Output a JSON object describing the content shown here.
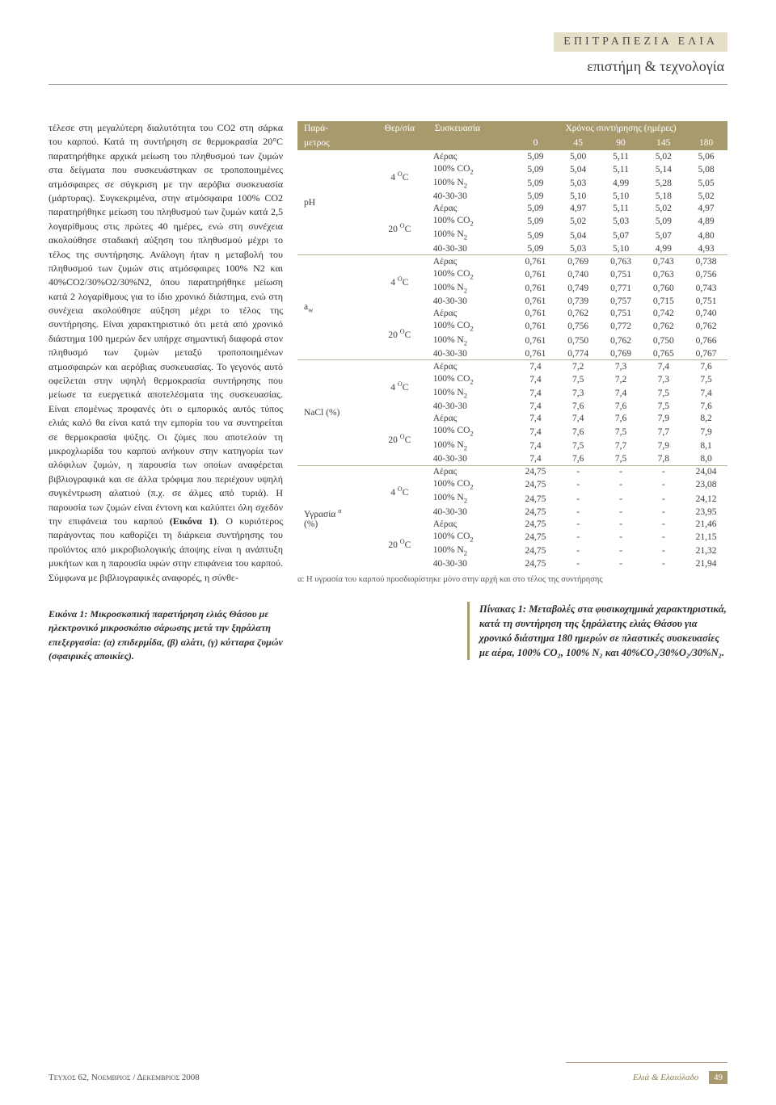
{
  "header": {
    "kicker": "ΕΠΙΤΡΑΠΕΖΙΑ ΕΛΙΑ",
    "subhead": "επιστήμη & τεχνολογία"
  },
  "body_text": "τέλεσε στη μεγαλύτερη διαλυτότητα του CO2 στη σάρκα του καρπού. Κατά τη συντήρηση σε θερμοκρασία 20°C παρατηρήθηκε αρχικά μείωση του πληθυσμού των ζυμών στα δείγματα που συσκευάστηκαν σε τροποποιημένες ατμόσφαιρες σε σύγκριση με την αερόβια συσκευασία (μάρτυρας). Συγκεκριμένα, στην ατμόσφαιρα 100% CO2 παρατηρήθηκε μείωση του πληθυσμού των ζυμών κατά 2,5 λογαρίθμους στις πρώτες 40 ημέρες, ενώ στη συνέχεια ακολούθησε σταδιακή αύξηση του πληθυσμού μέχρι το τέλος της συντήρησης. Ανάλογη ήταν η μεταβολή του πληθυσμού των ζυμών στις ατμόσφαιρες 100% N2 και 40%CO2/30%O2/30%N2, όπου παρατηρήθηκε μείωση κατά 2 λογαρίθμους για το ίδιο χρονικό διάστημα, ενώ στη συνέχεια ακολούθησε αύξηση μέχρι το τέλος της συντήρησης. Είναι χαρακτηριστικό ότι μετά από χρονικό διάστημα 100 ημερών δεν υπήρχε σημαντική διαφορά στον πληθυσμό των ζυμών μεταξύ τροποποιημένων ατμοσφαιρών και αερόβιας συσκευασίας. Το γεγονός αυτό οφείλεται στην υψηλή θερμοκρασία συντήρησης που μείωσε τα ευεργετικά αποτελέσματα της συσκευασίας. Είναι επομένως προφανές ότι ο εμπορικός αυτός τύπος ελιάς καλό θα είναι κατά την εμπορία του να συντηρείται σε θερμοκρασία ψύξης. Οι ζύμες που αποτελούν τη μικροχλωρίδα του καρπού ανήκουν στην κατηγορία των αλόφιλων ζυμών, η παρουσία των οποίων αναφέρεται βιβλιογραφικά και σε άλλα τρόφιμα που περιέχουν υψηλή συγκέντρωση αλατιού (π.χ. σε άλμες από τυριά). Η παρουσία των ζυμών είναι έντονη και καλύπτει όλη σχεδόν την επιφάνεια του καρπού ",
  "body_bold1": "(Εικόνα 1)",
  "body_text2": ". Ο κυριότερος παράγοντας που καθορίζει τη διάρκεια συντήρησης του προϊόντος από μικροβιολογικής άποψης είναι η ανάπτυξη μυκήτων και η παρουσία υφών στην επιφάνεια του καρπού. Σύμφωνα με βιβλιογραφικές αναφορές, η σύνθε-",
  "fig_caption": "Εικόνα 1: Μικροσκοπική παρατήρηση ελιάς Θάσου με ηλεκτρονικό μικροσκόπιο σάρωσης μετά την ξηράλατη επεξεργασία: (α) επιδερμίδα, (β) αλάτι, (γ) κύτταρα ζυμών (σφαιρικές αποικίες).",
  "table": {
    "header1": {
      "param": "Παρά-",
      "temp": "Θερ/σία",
      "pack": "Συσκευασία",
      "days_span": "Χρόνος συντήρησης (ημέρες)"
    },
    "header2": {
      "param": "μετρος",
      "d0": "0",
      "d45": "45",
      "d90": "90",
      "d145": "145",
      "d180": "180"
    },
    "packaging": [
      "Αέρας",
      "100% CO₂",
      "100% N₂",
      "40-30-30"
    ],
    "temps": [
      "4 °C",
      "20 °C"
    ],
    "groups": [
      {
        "param": "pH",
        "blocks": [
          {
            "temp_idx": 0,
            "rows": [
              [
                "5,09",
                "5,00",
                "5,11",
                "5,02",
                "5,06"
              ],
              [
                "5,09",
                "5,04",
                "5,11",
                "5,14",
                "5,08"
              ],
              [
                "5,09",
                "5,03",
                "4,99",
                "5,28",
                "5,05"
              ],
              [
                "5,09",
                "5,10",
                "5,10",
                "5,18",
                "5,02"
              ]
            ]
          },
          {
            "temp_idx": 1,
            "rows": [
              [
                "5,09",
                "4,97",
                "5,11",
                "5,02",
                "4,97"
              ],
              [
                "5,09",
                "5,02",
                "5,03",
                "5,09",
                "4,89"
              ],
              [
                "5,09",
                "5,04",
                "5,07",
                "5,07",
                "4,80"
              ],
              [
                "5,09",
                "5,03",
                "5,10",
                "4,99",
                "4,93"
              ]
            ]
          }
        ]
      },
      {
        "param": "a_w",
        "blocks": [
          {
            "temp_idx": 0,
            "rows": [
              [
                "0,761",
                "0,769",
                "0,763",
                "0,743",
                "0,738"
              ],
              [
                "0,761",
                "0,740",
                "0,751",
                "0,763",
                "0,756"
              ],
              [
                "0,761",
                "0,749",
                "0,771",
                "0,760",
                "0,743"
              ],
              [
                "0,761",
                "0,739",
                "0,757",
                "0,715",
                "0,751"
              ]
            ]
          },
          {
            "temp_idx": 1,
            "rows": [
              [
                "0,761",
                "0,762",
                "0,751",
                "0,742",
                "0,740"
              ],
              [
                "0,761",
                "0,756",
                "0,772",
                "0,762",
                "0,762"
              ],
              [
                "0,761",
                "0,750",
                "0,762",
                "0,750",
                "0,766"
              ],
              [
                "0,761",
                "0,774",
                "0,769",
                "0,765",
                "0,767"
              ]
            ]
          }
        ]
      },
      {
        "param": "NaCl (%)",
        "blocks": [
          {
            "temp_idx": 0,
            "rows": [
              [
                "7,4",
                "7,2",
                "7,3",
                "7,4",
                "7,6"
              ],
              [
                "7,4",
                "7,5",
                "7,2",
                "7,3",
                "7,5"
              ],
              [
                "7,4",
                "7,3",
                "7,4",
                "7,5",
                "7,4"
              ],
              [
                "7,4",
                "7,6",
                "7,6",
                "7,5",
                "7,6"
              ]
            ]
          },
          {
            "temp_idx": 1,
            "rows": [
              [
                "7,4",
                "7,4",
                "7,6",
                "7,9",
                "8,2"
              ],
              [
                "7,4",
                "7,6",
                "7,5",
                "7,7",
                "7,9"
              ],
              [
                "7,4",
                "7,5",
                "7,7",
                "7,9",
                "8,1"
              ],
              [
                "7,4",
                "7,6",
                "7,5",
                "7,8",
                "8,0"
              ]
            ]
          }
        ]
      },
      {
        "param": "Υγρασία ᵃ (%)",
        "blocks": [
          {
            "temp_idx": 0,
            "rows": [
              [
                "24,75",
                "-",
                "-",
                "-",
                "24,04"
              ],
              [
                "24,75",
                "-",
                "-",
                "-",
                "23,08"
              ],
              [
                "24,75",
                "-",
                "-",
                "-",
                "24,12"
              ],
              [
                "24,75",
                "-",
                "-",
                "-",
                "23,95"
              ]
            ]
          },
          {
            "temp_idx": 1,
            "rows": [
              [
                "24,75",
                "-",
                "-",
                "-",
                "21,46"
              ],
              [
                "24,75",
                "-",
                "-",
                "-",
                "21,15"
              ],
              [
                "24,75",
                "-",
                "-",
                "-",
                "21,32"
              ],
              [
                "24,75",
                "-",
                "-",
                "-",
                "21,94"
              ]
            ]
          }
        ]
      }
    ],
    "note": "α: Η υγρασία του καρπού προσδιορίστηκε μόνο στην αρχή και στο τέλος της συντήρησης"
  },
  "table_caption": "Πίνακας 1: Μεταβολές στα φυσικοχημικά χαρακτηριστικά, κατά τη συντήρηση της ξηράλατης ελιάς Θάσου για χρονικό διάστημα 180 ημερών σε πλαστικές συσκευασίες με αέρα, 100% CO₂, 100% N₂ και 40%CO₂/30%O₂/30%N₂.",
  "footer": {
    "left": "Τευχος 62, Νοεμβριος / Δεκεμβριος 2008",
    "brand": "Ελιά & Ελαιόλαδο",
    "page": "49"
  },
  "colors": {
    "accent": "#a99a6d",
    "kicker_bg": "#e6dfc8",
    "text": "#3a3a3a"
  }
}
